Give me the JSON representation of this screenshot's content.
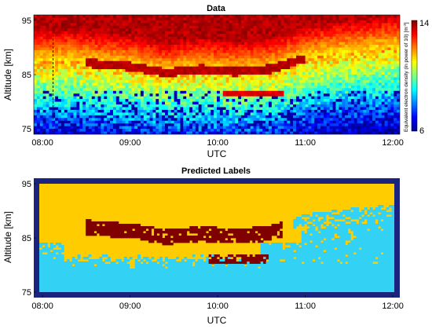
{
  "panels": [
    {
      "title": "Data",
      "xlabel": "UTC",
      "ylabel": "Altitude [km]",
      "colorbar": {
        "label": "Equivalent electron density (in power of 10) [m",
        "label_sup": "-3",
        "label_end": "]",
        "min_label": "6",
        "max_label": "14",
        "min": 6,
        "max": 14,
        "colormap": "jet"
      }
    },
    {
      "title": "Predicted Labels",
      "xlabel": "UTC",
      "ylabel": "Altitude [km]",
      "colors": {
        "background": "#1a237e",
        "class_a": "#ffcc00",
        "class_b": "#33d2f5",
        "class_c": "#800000"
      }
    }
  ],
  "chart_data": [
    {
      "type": "heatmap",
      "title": "Data",
      "xlabel": "UTC",
      "ylabel": "Altitude [km]",
      "x_ticks": [
        "08:00",
        "09:00",
        "10:00",
        "11:00",
        "12:00"
      ],
      "x_tick_hours": [
        8,
        9,
        10,
        11,
        12
      ],
      "xlim": [
        7.9,
        12.08
      ],
      "y_ticks": [
        75,
        85,
        95
      ],
      "ylim": [
        74,
        96
      ],
      "color_range": [
        6,
        14
      ],
      "layer_altitude_profile": {
        "hours": [
          8.3,
          8.6,
          9.0,
          9.4,
          9.8,
          10.2,
          10.6,
          11.0,
          11.4,
          11.8,
          12.0
        ],
        "altitude_km": [
          87.5,
          87.0,
          86.5,
          85.3,
          86.0,
          85.5,
          86.0,
          88.0,
          89.0,
          89.5,
          90.0
        ]
      }
    },
    {
      "type": "heatmap",
      "title": "Predicted Labels",
      "xlabel": "UTC",
      "ylabel": "Altitude [km]",
      "x_ticks": [
        "08:00",
        "09:00",
        "10:00",
        "11:00",
        "12:00"
      ],
      "x_tick_hours": [
        8,
        9,
        10,
        11,
        12
      ],
      "xlim": [
        7.9,
        12.08
      ],
      "y_ticks": [
        75,
        85,
        95
      ],
      "ylim": [
        74,
        96
      ]
    }
  ]
}
